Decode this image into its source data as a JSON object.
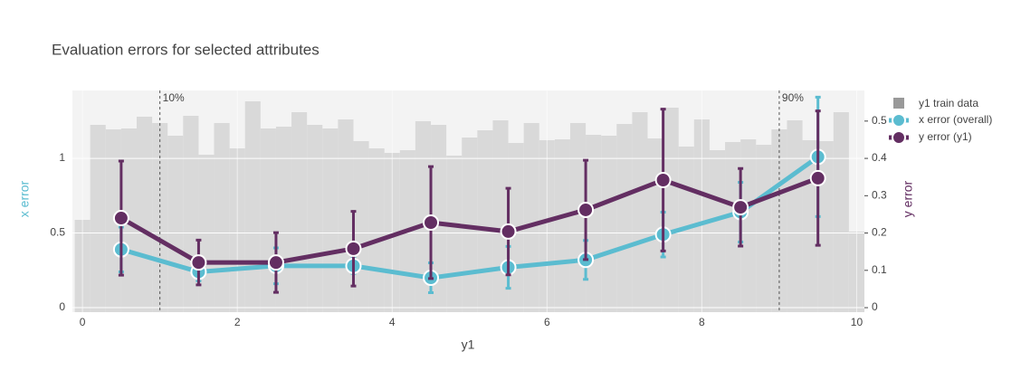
{
  "chart_data": {
    "type": "line",
    "title": "Evaluation errors for selected attributes",
    "x_label": "y1",
    "y_label": "x error",
    "y2_label": "y error",
    "xlim": [
      -0.13,
      10.1
    ],
    "xticks": [
      0,
      2,
      4,
      6,
      8,
      10
    ],
    "ylim": [
      -0.03,
      1.455
    ],
    "yticks": [
      0,
      0.5,
      1
    ],
    "y2lim": [
      -0.012,
      0.582
    ],
    "y2ticks": [
      0,
      0.1,
      0.2,
      0.3,
      0.4,
      0.5
    ],
    "grid": true,
    "legend": "top-right",
    "histogram": {
      "name": "y1 train data",
      "color": "#d9d9d9",
      "ylim": [
        0,
        245
      ],
      "bins": [
        -0.1,
        0.1,
        0.3,
        0.5,
        0.7,
        0.9,
        1.1,
        1.3,
        1.5,
        1.7,
        1.9,
        2.1,
        2.3,
        2.5,
        2.7,
        2.9,
        3.1,
        3.3,
        3.5,
        3.7,
        3.9,
        4.1,
        4.3,
        4.5,
        4.7,
        4.9,
        5.1,
        5.3,
        5.5,
        5.7,
        5.9,
        6.1,
        6.3,
        6.5,
        6.7,
        6.9,
        7.1,
        7.3,
        7.5,
        7.7,
        7.9,
        8.1,
        8.3,
        8.5,
        8.7,
        8.9,
        9.1,
        9.3,
        9.5,
        9.7,
        9.9,
        10.1
      ],
      "counts": [
        102,
        207,
        202,
        203,
        216,
        209,
        195,
        217,
        174,
        209,
        181,
        233,
        203,
        205,
        221,
        207,
        203,
        213,
        189,
        181,
        176,
        179,
        211,
        207,
        173,
        193,
        201,
        212,
        187,
        209,
        190,
        191,
        209,
        196,
        195,
        208,
        221,
        192,
        226,
        183,
        213,
        179,
        188,
        191,
        185,
        202,
        212,
        190,
        189,
        221,
        89
      ]
    },
    "x": [
      0.5,
      1.5,
      2.5,
      3.5,
      4.5,
      5.5,
      6.5,
      7.5,
      8.5,
      9.5
    ],
    "series": [
      {
        "name": "x error (overall)",
        "color": "#5bbcd0",
        "values": [
          0.39,
          0.24,
          0.28,
          0.28,
          0.2,
          0.27,
          0.32,
          0.49,
          0.64,
          1.01
        ],
        "errors": [
          0.15,
          0.06,
          0.12,
          0.05,
          0.1,
          0.14,
          0.13,
          0.15,
          0.2,
          0.4
        ]
      },
      {
        "name": "y error (y1)",
        "color": "#632e62",
        "axis": "y2",
        "values": [
          0.24,
          0.121,
          0.121,
          0.158,
          0.228,
          0.204,
          0.262,
          0.342,
          0.269,
          0.347
        ],
        "errors": [
          0.153,
          0.06,
          0.08,
          0.1,
          0.15,
          0.116,
          0.133,
          0.19,
          0.104,
          0.18
        ]
      }
    ],
    "vlines": [
      {
        "x": 1,
        "label": "10%"
      },
      {
        "x": 9,
        "label": "90%"
      }
    ]
  }
}
